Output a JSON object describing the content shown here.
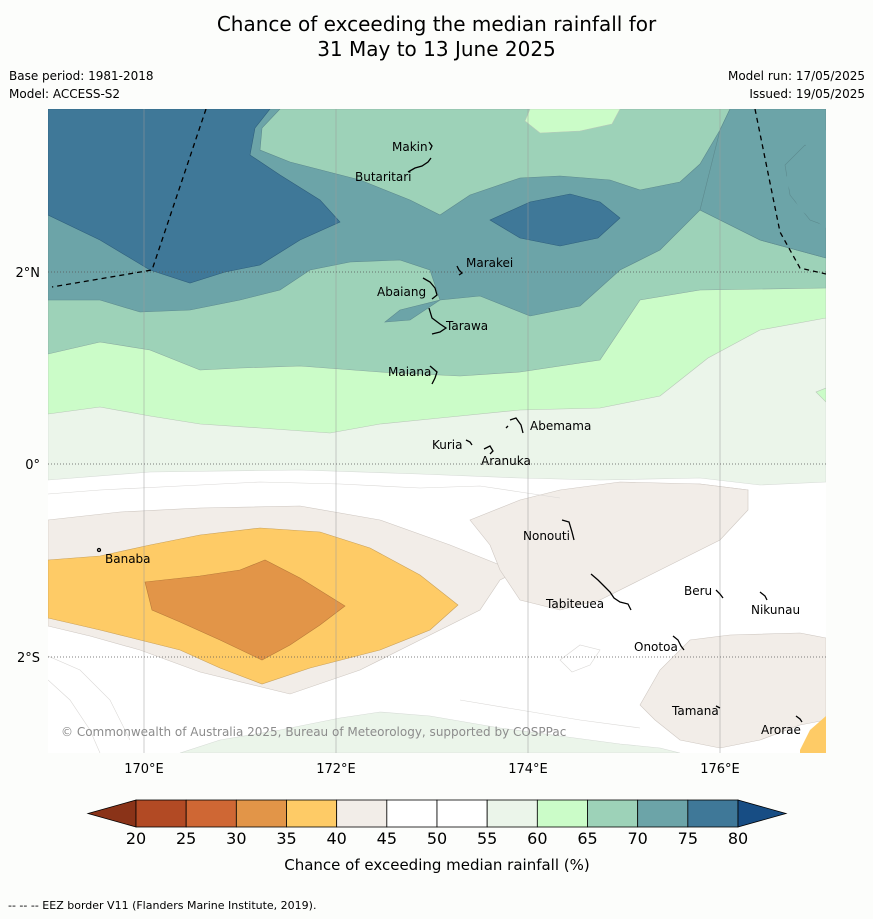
{
  "title": {
    "line1": "Chance of exceeding the median rainfall for",
    "line2": "31 May to 13 June 2025"
  },
  "meta": {
    "base_period": "Base period: 1981-2018",
    "model": "Model: ACCESS-S2",
    "model_run": "Model run: 17/05/2025",
    "issued": "Issued: 19/05/2025"
  },
  "axes": {
    "x_ticks": [
      "170°E",
      "172°E",
      "174°E",
      "176°E"
    ],
    "y_ticks": [
      "2°N",
      "0°",
      "2°S"
    ]
  },
  "places": [
    "Makin",
    "Butaritari",
    "Marakei",
    "Abaiang",
    "Tarawa",
    "Maiana",
    "Abemama",
    "Kuria",
    "Aranuka",
    "Nonouti",
    "Banaba",
    "Beru",
    "Tabiteuea",
    "Nikunau",
    "Onotoa",
    "Tamana",
    "Arorae"
  ],
  "copyright": "© Commonwealth of Australia 2025, Bureau of Meteorology, supported by COSPPac",
  "colorbar": {
    "labels": [
      "20",
      "25",
      "30",
      "35",
      "40",
      "45",
      "50",
      "55",
      "60",
      "65",
      "70",
      "75",
      "80"
    ],
    "title": "Chance of exceeding median rainfall (%)",
    "colors": {
      "under": "#8a3318",
      "bins": [
        "#b24a24",
        "#cf6734",
        "#e29548",
        "#fecb66",
        "#f2ede8",
        "#ffffff",
        "#ffffff",
        "#ebf5ea",
        "#cbfcc8",
        "#9dd2b8",
        "#6ca4a8",
        "#3f7898"
      ],
      "over": "#174d84"
    }
  },
  "footer": "-- -- -- EEZ border V11 (Flanders Marine Institute, 2019)."
}
